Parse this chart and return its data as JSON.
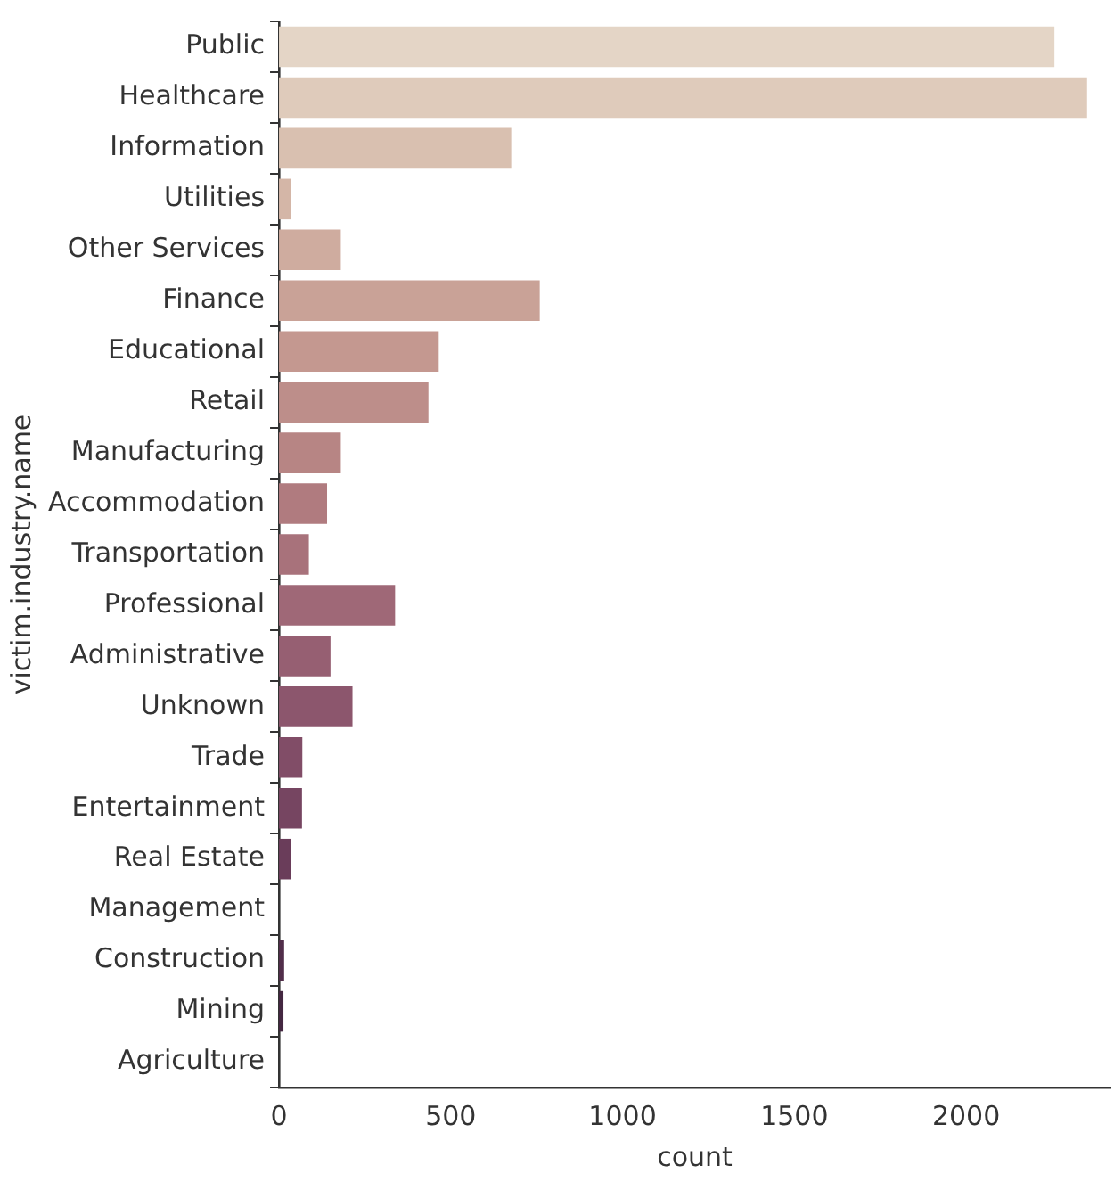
{
  "chart_data": {
    "type": "bar",
    "orientation": "horizontal",
    "xlabel": "count",
    "ylabel": "victim.industry.name",
    "categories": [
      "Public",
      "Healthcare",
      "Information",
      "Utilities",
      "Other Services",
      "Finance",
      "Educational",
      "Retail",
      "Manufacturing",
      "Accommodation",
      "Transportation",
      "Professional",
      "Administrative",
      "Unknown",
      "Trade",
      "Entertainment",
      "Real Estate",
      "Management",
      "Construction",
      "Mining",
      "Agriculture"
    ],
    "values": [
      2257,
      2352,
      676,
      36,
      180,
      759,
      465,
      435,
      180,
      140,
      87,
      338,
      150,
      214,
      68,
      67,
      34,
      null,
      15,
      13,
      null
    ],
    "colors": [
      "#e4d5c6",
      "#dfcbbb",
      "#d9c0b0",
      "#d4b6a7",
      "#cfac9f",
      "#c9a297",
      "#c49890",
      "#bd8e8a",
      "#b78584",
      "#b07b7f",
      "#a8727b",
      "#9f6877",
      "#965f72",
      "#8c566d",
      "#814d67",
      "#764561",
      "#6a3d5a",
      "#5e3552",
      "#512e4a",
      "#442741",
      "#372037"
    ],
    "xlim": [
      0,
      2420
    ],
    "xticks": [
      0,
      500,
      1000,
      1500,
      2000
    ],
    "grid": false,
    "legend": false
  }
}
